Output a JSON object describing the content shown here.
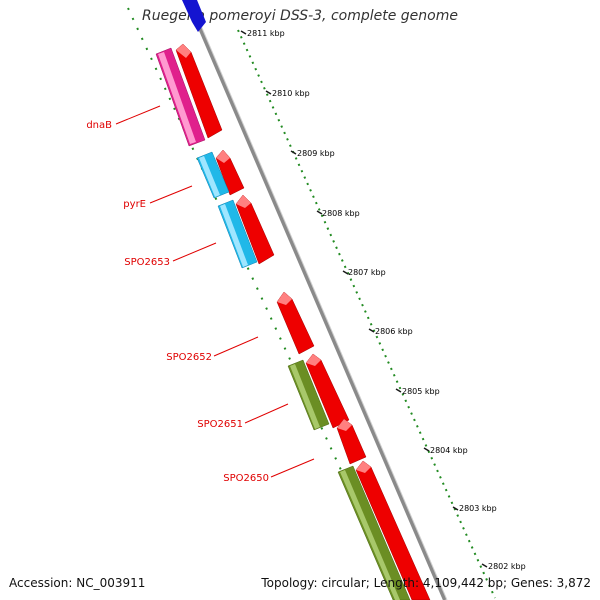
{
  "title": "Ruegeria pomeroyi DSS-3, complete genome",
  "footer": {
    "accession": "Accession: NC_003911",
    "topology": "Topology: circular; Length: 4,109,442 bp; Genes: 3,872"
  },
  "ticks": [
    "2811 kbp",
    "2810 kbp",
    "2809 kbp",
    "2808 kbp",
    "2807 kbp",
    "2806 kbp",
    "2805 kbp",
    "2804 kbp",
    "2803 kbp",
    "2802 kbp"
  ],
  "gene_labels": [
    "dnaB",
    "pyrE",
    "SPO2653",
    "SPO2652",
    "SPO2651",
    "SPO2650"
  ],
  "colors": {
    "backbone": "#888888",
    "forward_gene": "#ff0000",
    "gene_magenta": "#e0208c",
    "gene_cyan": "#20b8e8",
    "gene_olive": "#6b8e23",
    "gene_blue": "#1010d0",
    "dotted_ring": "#228b22",
    "label": "#e00000"
  },
  "icons": [
    "gene-arrow-icon"
  ]
}
